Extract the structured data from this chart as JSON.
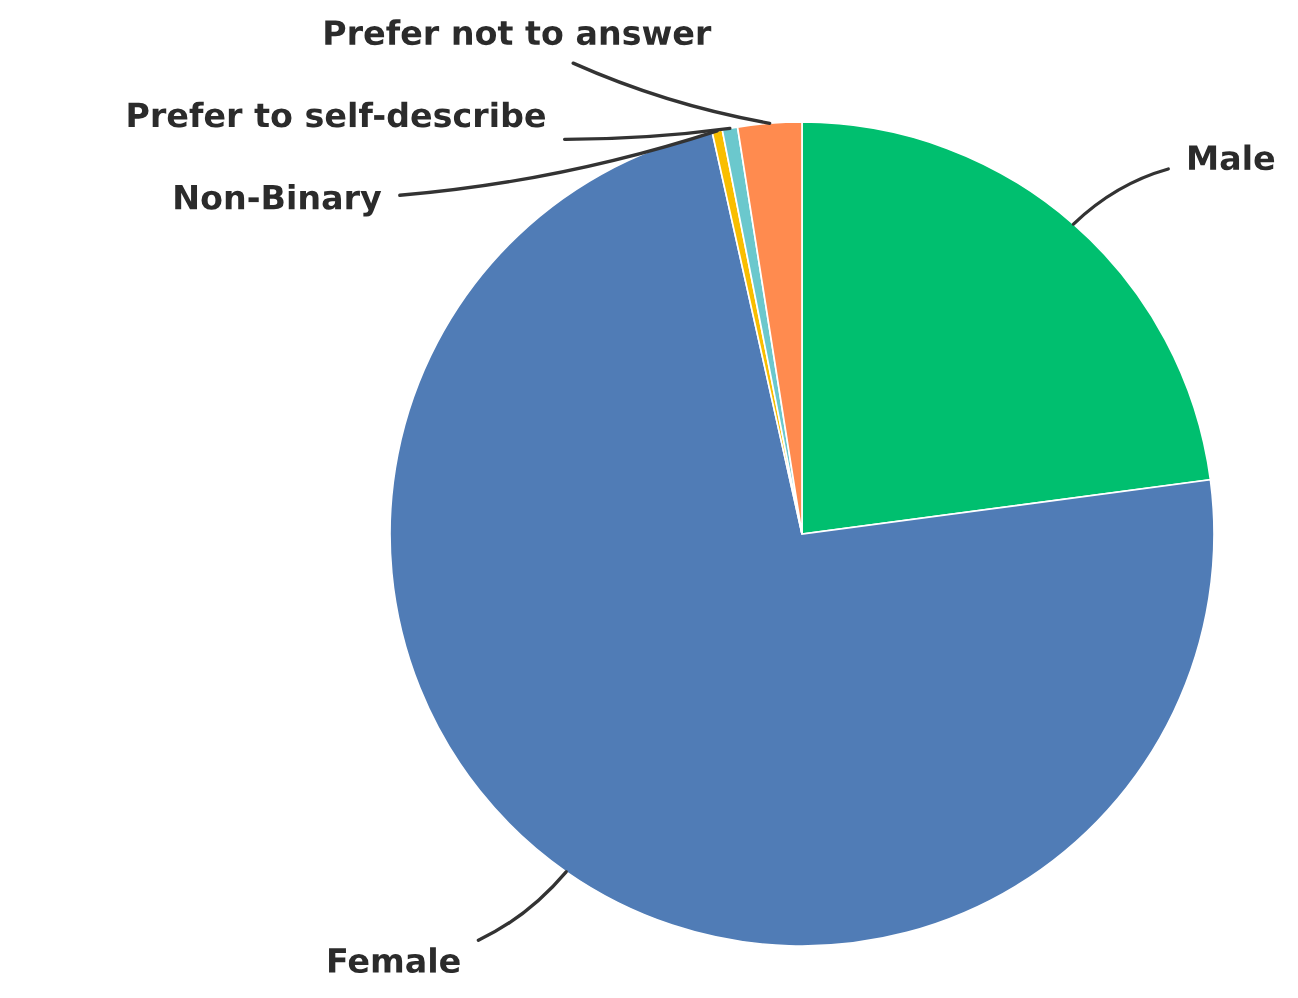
{
  "chart_data": {
    "type": "pie",
    "categories": [
      "Male",
      "Female",
      "Non-Binary",
      "Prefer to self-describe",
      "Prefer not to answer"
    ],
    "values": [
      22.9,
      73.6,
      0.4,
      0.6,
      2.5
    ],
    "colors": [
      "#00bf6f",
      "#507cb6",
      "#f9be00",
      "#6bc8cd",
      "#ff8b4f"
    ]
  }
}
